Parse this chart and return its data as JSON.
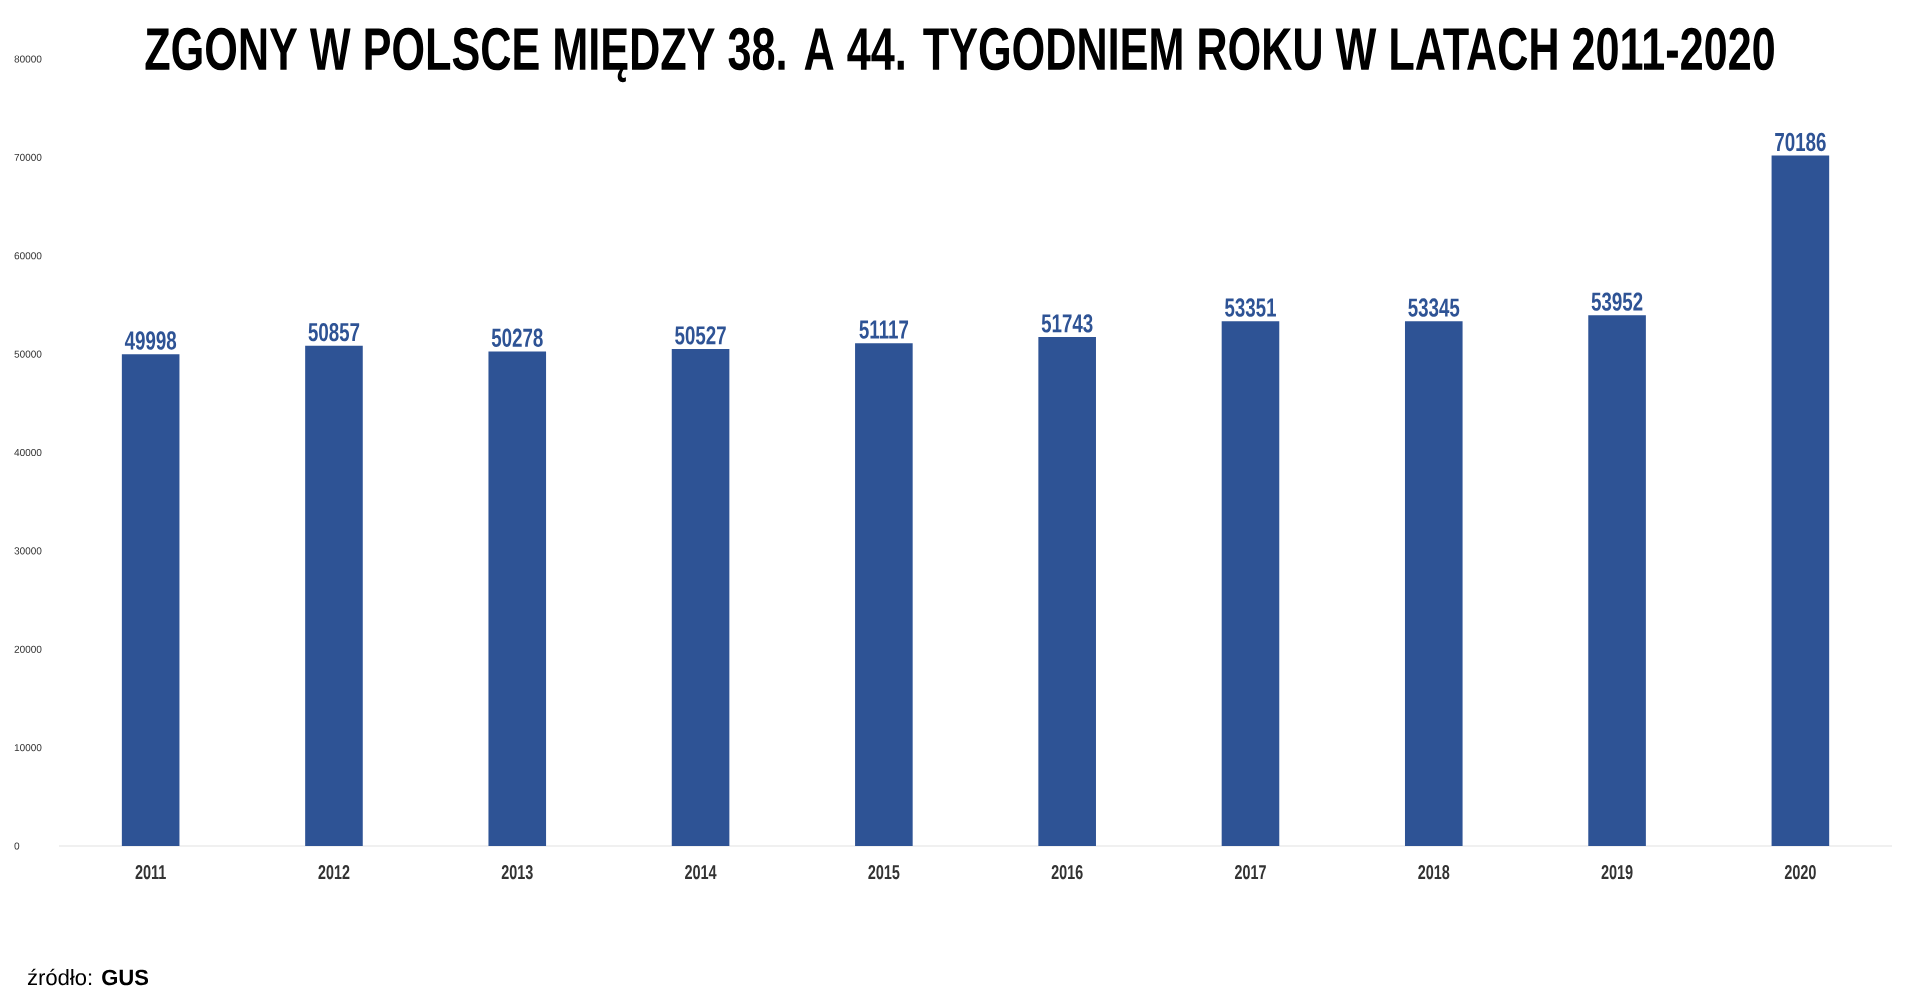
{
  "chart_data": {
    "type": "bar",
    "title": "ZGONY W POLSCE MIĘDZY 38. A 44. TYGODNIEM ROKU W LATACH 2011-2020",
    "categories": [
      "2011",
      "2012",
      "2013",
      "2014",
      "2015",
      "2016",
      "2017",
      "2018",
      "2019",
      "2020"
    ],
    "values": [
      49998,
      50857,
      50278,
      50527,
      51117,
      51743,
      53351,
      53345,
      53952,
      70186
    ],
    "color": "#2e5395",
    "ylim": [
      0,
      80000
    ],
    "yticks": [
      0,
      10000,
      20000,
      30000,
      40000,
      50000,
      60000,
      70000,
      80000
    ],
    "data_labels": true,
    "annotations": [
      "źródło: **GUS**"
    ]
  }
}
